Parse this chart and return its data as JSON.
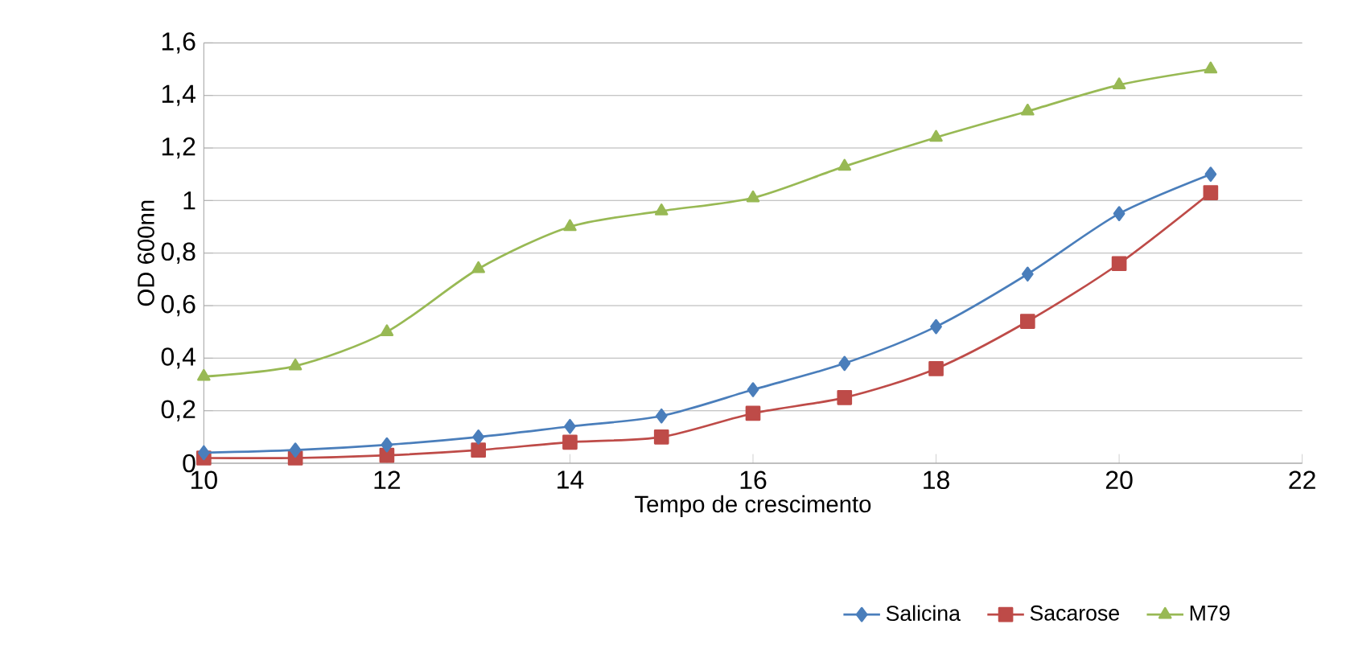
{
  "chart_data": {
    "type": "line",
    "xlabel": "Tempo de crescimento",
    "ylabel": "OD 600nn",
    "x": [
      10,
      11,
      12,
      13,
      14,
      15,
      16,
      17,
      18,
      19,
      20,
      21
    ],
    "series": [
      {
        "name": "Salicina",
        "color": "#4a7ebb",
        "marker": "diamond",
        "values": [
          0.04,
          0.05,
          0.07,
          0.1,
          0.14,
          0.18,
          0.28,
          0.38,
          0.52,
          0.72,
          0.95,
          1.1
        ]
      },
      {
        "name": "Sacarose",
        "color": "#be4b48",
        "marker": "square",
        "values": [
          0.02,
          0.02,
          0.03,
          0.05,
          0.08,
          0.1,
          0.19,
          0.25,
          0.36,
          0.54,
          0.76,
          1.03
        ]
      },
      {
        "name": "M79",
        "color": "#98b954",
        "marker": "triangle",
        "values": [
          0.33,
          0.37,
          0.5,
          0.74,
          0.9,
          0.96,
          1.01,
          1.13,
          1.24,
          1.34,
          1.44,
          1.5
        ]
      }
    ],
    "xlim": [
      10,
      22
    ],
    "xticks": [
      10,
      12,
      14,
      16,
      18,
      20,
      22
    ],
    "ylim": [
      0,
      1.6
    ],
    "yticks": [
      0,
      {
        "value": 0.2,
        "label": "0,2"
      },
      {
        "value": 0.4,
        "label": "0,4"
      },
      {
        "value": 0.6,
        "label": "0,6"
      },
      {
        "value": 0.8,
        "label": "0,8"
      },
      1,
      {
        "value": 1.2,
        "label": "1,2"
      },
      {
        "value": 1.4,
        "label": "1,4"
      },
      {
        "value": 1.6,
        "label": "1,6"
      }
    ],
    "grid": "y",
    "legend": "bottom right",
    "line_style": "solid"
  }
}
